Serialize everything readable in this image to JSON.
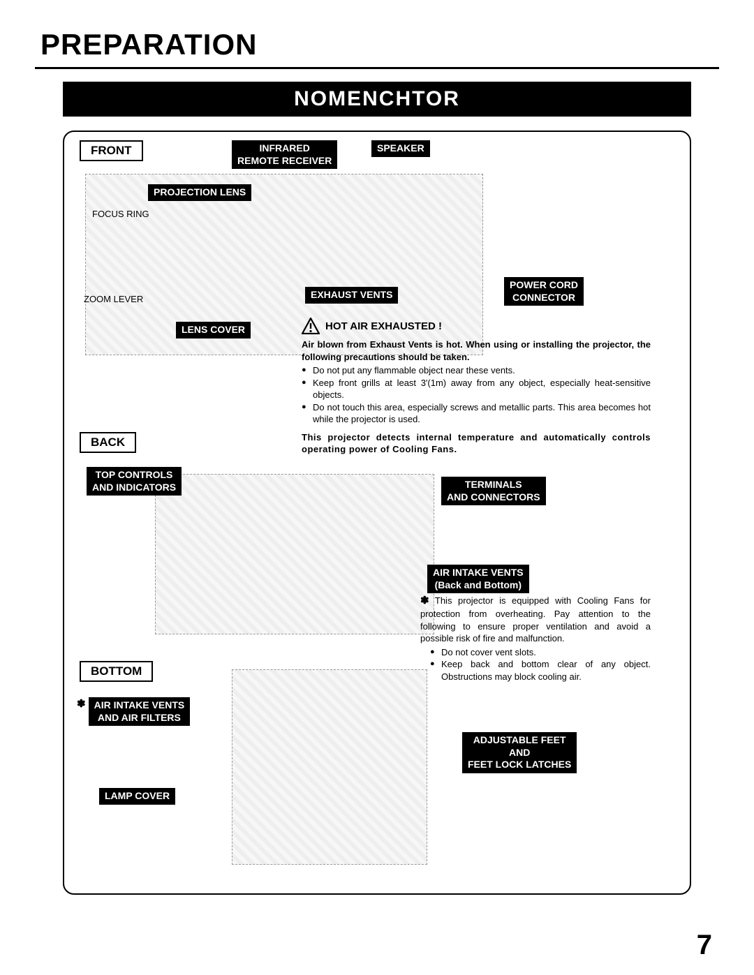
{
  "page": {
    "title": "PREPARATION",
    "section_banner": "NOMENCHTOR",
    "page_number": "7"
  },
  "views": {
    "front": "FRONT",
    "back": "BACK",
    "bottom": "BOTTOM"
  },
  "labels": {
    "infrared_remote_receiver": "INFRARED\nREMOTE RECEIVER",
    "speaker": "SPEAKER",
    "projection_lens": "PROJECTION LENS",
    "focus_ring": "FOCUS RING",
    "zoom_lever": "ZOOM LEVER",
    "lens_cover": "LENS COVER",
    "exhaust_vents": "EXHAUST VENTS",
    "power_cord_connector": "POWER CORD\nCONNECTOR",
    "top_controls_and_indicators": "TOP CONTROLS\nAND INDICATORS",
    "terminals_and_connectors": "TERMINALS\nAND CONNECTORS",
    "air_intake_vents_back_bottom": "AIR INTAKE VENTS\n(Back and Bottom)",
    "air_intake_vents_and_filters": "AIR INTAKE VENTS\nAND AIR FILTERS",
    "adjustable_feet": "ADJUSTABLE FEET\nAND\nFEET LOCK LATCHES",
    "lamp_cover": "LAMP COVER"
  },
  "warnings": {
    "hot_air": {
      "title": "HOT AIR EXHAUSTED !",
      "intro": "Air blown from Exhaust Vents is hot.  When using or installing the projector, the following precautions should be taken.",
      "bullets": [
        "Do not put any flammable object near these vents.",
        "Keep front grills at least 3'(1m) away from any object, especially heat-sensitive objects.",
        "Do not touch this area, especially screws and metallic parts. This area becomes hot while the projector is used."
      ],
      "footer": "This projector detects internal temperature and automatically controls operating power of Cooling Fans."
    },
    "air_intake": {
      "star": "✽",
      "intro": "This projector is equipped with Cooling Fans for protection from overheating. Pay attention to the following to ensure proper ventilation and avoid a possible risk of fire and malfunction.",
      "bullets": [
        "Do not cover vent slots.",
        "Keep back and bottom clear of any object.  Obstructions may block cooling air."
      ]
    }
  },
  "style": {
    "colors": {
      "black": "#000000",
      "white": "#ffffff"
    },
    "fonts": {
      "title_size_pt": 32,
      "banner_size_pt": 22,
      "label_size_pt": 11,
      "body_size_pt": 10
    }
  }
}
